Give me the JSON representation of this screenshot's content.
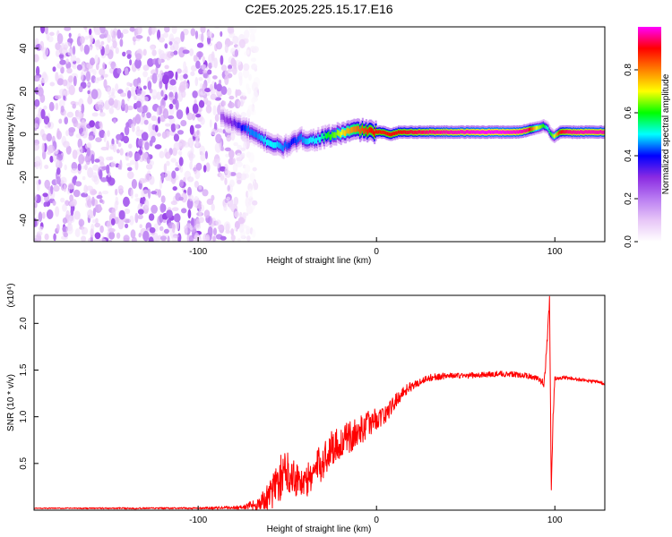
{
  "title": "C2E5.2025.225.15.17.E16",
  "chart_data": [
    {
      "type": "heatmap",
      "xlabel": "Height of straight line (km)",
      "ylabel": "Frequency (Hz)",
      "xlim": [
        -192,
        128
      ],
      "ylim": [
        -50,
        50
      ],
      "x_ticks": [
        -100,
        0,
        100
      ],
      "y_ticks": [
        -40,
        -20,
        0,
        20,
        40
      ],
      "grid": false,
      "colorbar": {
        "label": "Normalized spectral amplitude",
        "range": [
          0,
          1
        ],
        "ticks": [
          0.0,
          0.2,
          0.4,
          0.6,
          0.8
        ],
        "colormap": [
          "#ffffff",
          "#e7c6f7",
          "#b97cf2",
          "#8a2be2",
          "#0000ff",
          "#00ffff",
          "#00ff00",
          "#ffff00",
          "#ff8000",
          "#ff0000",
          "#ff00ff"
        ]
      },
      "noise_region_x": [
        -192,
        -73
      ],
      "ridge": {
        "x": [
          -87,
          -82,
          -77,
          -72,
          -67,
          -62,
          -57,
          -52,
          -47,
          -42,
          -37,
          -32,
          -27,
          -22,
          -17,
          -12,
          -7,
          -2,
          3,
          8,
          13,
          20,
          30,
          40,
          50,
          60,
          70,
          80,
          85,
          90,
          94,
          96,
          98,
          100,
          103,
          108,
          115,
          122,
          128
        ],
        "y": [
          8,
          6,
          4,
          2,
          -1,
          -3,
          -5,
          -6,
          -4,
          -2,
          -3,
          -2,
          -1,
          0,
          1,
          2,
          2,
          1,
          1,
          0,
          1,
          1,
          1,
          1,
          1,
          1,
          1,
          1,
          2,
          3,
          4,
          3,
          0,
          -1,
          1,
          1,
          1,
          1,
          1
        ],
        "peak": [
          0.25,
          0.3,
          0.35,
          0.45,
          0.45,
          0.5,
          0.5,
          0.45,
          0.4,
          0.45,
          0.5,
          0.5,
          0.6,
          0.65,
          0.75,
          0.8,
          0.85,
          0.9,
          0.88,
          0.9,
          0.9,
          0.92,
          0.95,
          0.97,
          0.98,
          1.0,
          1.0,
          0.98,
          0.95,
          0.7,
          0.6,
          0.5,
          0.6,
          0.7,
          0.9,
          0.95,
          0.97,
          0.97,
          0.97
        ]
      }
    },
    {
      "type": "line",
      "xlabel": "Height of straight line (km)",
      "ylabel": "SNR (10 * v/v)",
      "y_multiplier": "(x10⁴)",
      "xlim": [
        -192,
        128
      ],
      "ylim": [
        0,
        2.3
      ],
      "x_ticks": [
        -100,
        0,
        100
      ],
      "y_ticks": [
        0.5,
        1.0,
        1.5,
        2.0
      ],
      "grid": false,
      "series": [
        {
          "color": "#ff0000",
          "x": [
            -192,
            -150,
            -100,
            -75,
            -66,
            -60,
            -55,
            -50,
            -45,
            -40,
            -35,
            -30,
            -25,
            -20,
            -15,
            -10,
            -5,
            0,
            5,
            10,
            15,
            20,
            25,
            30,
            40,
            50,
            60,
            70,
            80,
            90,
            94,
            96,
            97,
            98,
            99,
            100,
            102,
            105,
            110,
            120,
            128
          ],
          "y": [
            0.02,
            0.02,
            0.02,
            0.03,
            0.07,
            0.15,
            0.32,
            0.42,
            0.35,
            0.28,
            0.42,
            0.52,
            0.68,
            0.72,
            0.78,
            0.84,
            0.92,
            0.98,
            1.02,
            1.15,
            1.27,
            1.33,
            1.38,
            1.42,
            1.44,
            1.44,
            1.45,
            1.46,
            1.45,
            1.42,
            1.35,
            1.9,
            2.25,
            0.2,
            1.0,
            1.42,
            1.4,
            1.42,
            1.41,
            1.38,
            1.36
          ],
          "noise": [
            0.005,
            0.008,
            0.01,
            0.02,
            0.08,
            0.15,
            0.25,
            0.22,
            0.2,
            0.18,
            0.2,
            0.2,
            0.2,
            0.18,
            0.17,
            0.16,
            0.14,
            0.12,
            0.1,
            0.08,
            0.06,
            0.05,
            0.04,
            0.04,
            0.03,
            0.03,
            0.03,
            0.03,
            0.03,
            0.03,
            0.05,
            0.05,
            0.05,
            0.05,
            0.05,
            0.03,
            0.02,
            0.02,
            0.02,
            0.02,
            0.02
          ]
        }
      ]
    }
  ]
}
